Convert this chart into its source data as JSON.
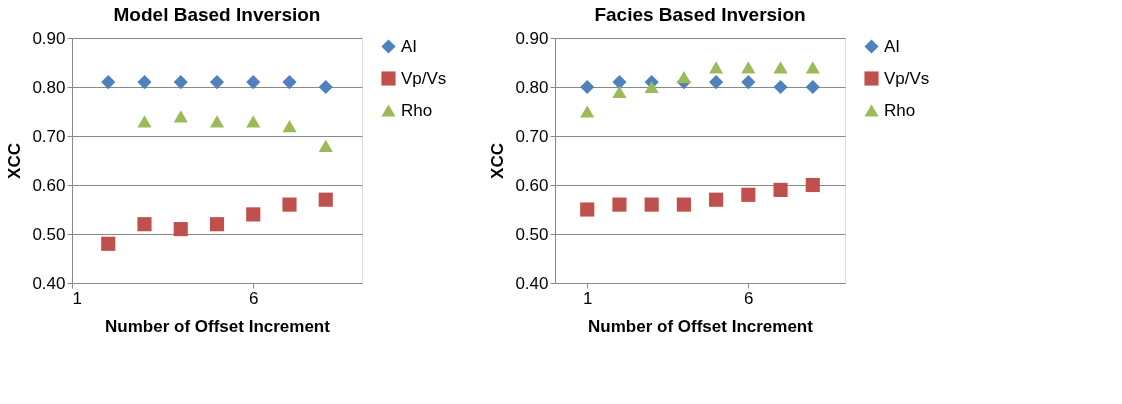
{
  "chart_data": [
    {
      "type": "scatter",
      "title": "Model Based Inversion",
      "xlabel": "Number of Offset Increment",
      "ylabel": "XCC",
      "xlim": [
        1,
        9
      ],
      "xticks": [
        1,
        6
      ],
      "ylim": [
        0.4,
        0.9
      ],
      "yticks": [
        {
          "value": 0.4,
          "label": "0.40"
        },
        {
          "value": 0.5,
          "label": "0.50"
        },
        {
          "value": 0.6,
          "label": "0.60"
        },
        {
          "value": 0.7,
          "label": "0.70"
        },
        {
          "value": 0.8,
          "label": "0.80"
        },
        {
          "value": 0.9,
          "label": "0.90"
        }
      ],
      "grid": "y",
      "legend": "right",
      "series": [
        {
          "name": "AI",
          "color": "#4f81bd",
          "marker": "diamond",
          "x": [
            2,
            3,
            4,
            5,
            6,
            7,
            8
          ],
          "values": [
            0.81,
            0.81,
            0.81,
            0.81,
            0.81,
            0.81,
            0.8
          ]
        },
        {
          "name": "Vp/Vs",
          "color": "#c0504d",
          "marker": "square",
          "x": [
            2,
            3,
            4,
            5,
            6,
            7,
            8
          ],
          "values": [
            0.48,
            0.52,
            0.51,
            0.52,
            0.54,
            0.56,
            0.57
          ]
        },
        {
          "name": "Rho",
          "color": "#9bbb59",
          "marker": "triangle",
          "x": [
            3,
            4,
            5,
            6,
            7,
            8
          ],
          "values": [
            0.73,
            0.74,
            0.73,
            0.73,
            0.72,
            0.68
          ]
        }
      ]
    },
    {
      "type": "scatter",
      "title": "Facies Based Inversion",
      "xlabel": "Number of Offset Increment",
      "ylabel": "XCC",
      "xlim": [
        0,
        9
      ],
      "xticks": [
        1,
        6
      ],
      "ylim": [
        0.4,
        0.9
      ],
      "yticks": [
        {
          "value": 0.4,
          "label": "0.40"
        },
        {
          "value": 0.5,
          "label": "0.50"
        },
        {
          "value": 0.6,
          "label": "0.60"
        },
        {
          "value": 0.7,
          "label": "0.70"
        },
        {
          "value": 0.8,
          "label": "0.80"
        },
        {
          "value": 0.9,
          "label": "0.90"
        }
      ],
      "grid": "y",
      "legend": "right",
      "series": [
        {
          "name": "AI",
          "color": "#4f81bd",
          "marker": "diamond",
          "x": [
            1,
            2,
            3,
            4,
            5,
            6,
            7,
            8
          ],
          "values": [
            0.8,
            0.81,
            0.81,
            0.81,
            0.81,
            0.81,
            0.8,
            0.8
          ]
        },
        {
          "name": "Vp/Vs",
          "color": "#c0504d",
          "marker": "square",
          "x": [
            1,
            2,
            3,
            4,
            5,
            6,
            7,
            8
          ],
          "values": [
            0.55,
            0.56,
            0.56,
            0.56,
            0.57,
            0.58,
            0.59,
            0.6
          ]
        },
        {
          "name": "Rho",
          "color": "#9bbb59",
          "marker": "triangle",
          "x": [
            1,
            2,
            3,
            4,
            5,
            6,
            7,
            8
          ],
          "values": [
            0.75,
            0.79,
            0.8,
            0.82,
            0.84,
            0.84,
            0.84,
            0.84
          ]
        }
      ]
    }
  ]
}
